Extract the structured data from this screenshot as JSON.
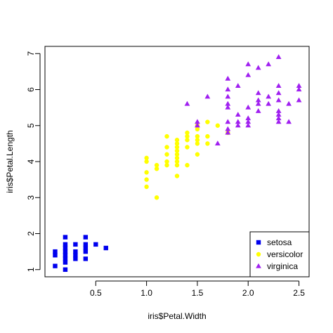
{
  "chart_data": {
    "type": "scatter",
    "xlabel": "iris$Petal.Width",
    "ylabel": "iris$Petal.Length",
    "xlim": [
      0.0,
      2.6
    ],
    "ylim": [
      0.8,
      7.2
    ],
    "x_ticks": [
      0.5,
      1.0,
      1.5,
      2.0,
      2.5
    ],
    "x_tick_labels": [
      "0.5",
      "1.0",
      "1.5",
      "2.0",
      "2.5"
    ],
    "y_ticks": [
      1,
      2,
      3,
      4,
      5,
      6,
      7
    ],
    "y_tick_labels": [
      "1",
      "2",
      "3",
      "4",
      "5",
      "6",
      "7"
    ],
    "legend_position": "bottom-right",
    "grid": false,
    "series": [
      {
        "name": "setosa",
        "marker": "square",
        "color": "#0000EE",
        "points": [
          [
            0.1,
            1.1
          ],
          [
            0.1,
            1.4
          ],
          [
            0.1,
            1.5
          ],
          [
            0.2,
            1.0
          ],
          [
            0.2,
            1.2
          ],
          [
            0.2,
            1.3
          ],
          [
            0.2,
            1.4
          ],
          [
            0.2,
            1.5
          ],
          [
            0.2,
            1.6
          ],
          [
            0.2,
            1.7
          ],
          [
            0.2,
            1.9
          ],
          [
            0.3,
            1.3
          ],
          [
            0.3,
            1.4
          ],
          [
            0.3,
            1.5
          ],
          [
            0.3,
            1.7
          ],
          [
            0.4,
            1.3
          ],
          [
            0.4,
            1.5
          ],
          [
            0.4,
            1.6
          ],
          [
            0.4,
            1.7
          ],
          [
            0.4,
            1.9
          ],
          [
            0.5,
            1.7
          ],
          [
            0.6,
            1.6
          ]
        ]
      },
      {
        "name": "versicolor",
        "marker": "circle",
        "color": "#FFFF00",
        "points": [
          [
            1.0,
            3.3
          ],
          [
            1.0,
            3.5
          ],
          [
            1.0,
            3.7
          ],
          [
            1.0,
            4.0
          ],
          [
            1.0,
            4.1
          ],
          [
            1.1,
            3.0
          ],
          [
            1.1,
            3.8
          ],
          [
            1.1,
            3.9
          ],
          [
            1.2,
            3.9
          ],
          [
            1.2,
            4.0
          ],
          [
            1.2,
            4.2
          ],
          [
            1.2,
            4.4
          ],
          [
            1.2,
            4.7
          ],
          [
            1.3,
            3.6
          ],
          [
            1.3,
            3.9
          ],
          [
            1.3,
            4.0
          ],
          [
            1.3,
            4.1
          ],
          [
            1.3,
            4.2
          ],
          [
            1.3,
            4.3
          ],
          [
            1.3,
            4.4
          ],
          [
            1.3,
            4.5
          ],
          [
            1.3,
            4.6
          ],
          [
            1.4,
            3.9
          ],
          [
            1.4,
            4.4
          ],
          [
            1.4,
            4.6
          ],
          [
            1.4,
            4.7
          ],
          [
            1.4,
            4.8
          ],
          [
            1.5,
            4.2
          ],
          [
            1.5,
            4.5
          ],
          [
            1.5,
            4.6
          ],
          [
            1.5,
            4.7
          ],
          [
            1.5,
            4.9
          ],
          [
            1.5,
            5.0
          ],
          [
            1.6,
            4.5
          ],
          [
            1.6,
            4.7
          ],
          [
            1.6,
            5.1
          ],
          [
            1.7,
            5.0
          ],
          [
            1.8,
            4.8
          ]
        ]
      },
      {
        "name": "virginica",
        "marker": "triangle",
        "color": "#A020F0",
        "points": [
          [
            1.4,
            5.6
          ],
          [
            1.5,
            5.0
          ],
          [
            1.5,
            5.1
          ],
          [
            1.6,
            5.8
          ],
          [
            1.7,
            4.5
          ],
          [
            1.8,
            4.8
          ],
          [
            1.8,
            4.9
          ],
          [
            1.8,
            5.1
          ],
          [
            1.8,
            5.5
          ],
          [
            1.8,
            5.6
          ],
          [
            1.8,
            5.8
          ],
          [
            1.8,
            6.0
          ],
          [
            1.8,
            6.3
          ],
          [
            1.9,
            5.0
          ],
          [
            1.9,
            5.1
          ],
          [
            1.9,
            5.3
          ],
          [
            1.9,
            6.1
          ],
          [
            2.0,
            5.0
          ],
          [
            2.0,
            5.1
          ],
          [
            2.0,
            5.2
          ],
          [
            2.0,
            5.5
          ],
          [
            2.0,
            6.4
          ],
          [
            2.0,
            6.7
          ],
          [
            2.1,
            5.4
          ],
          [
            2.1,
            5.6
          ],
          [
            2.1,
            5.7
          ],
          [
            2.1,
            5.9
          ],
          [
            2.1,
            6.6
          ],
          [
            2.2,
            5.6
          ],
          [
            2.2,
            5.8
          ],
          [
            2.2,
            6.7
          ],
          [
            2.3,
            5.1
          ],
          [
            2.3,
            5.2
          ],
          [
            2.3,
            5.3
          ],
          [
            2.3,
            5.4
          ],
          [
            2.3,
            5.7
          ],
          [
            2.3,
            5.9
          ],
          [
            2.3,
            6.1
          ],
          [
            2.3,
            6.9
          ],
          [
            2.4,
            5.1
          ],
          [
            2.4,
            5.6
          ],
          [
            2.5,
            5.7
          ],
          [
            2.5,
            6.0
          ],
          [
            2.5,
            6.1
          ]
        ]
      }
    ]
  }
}
